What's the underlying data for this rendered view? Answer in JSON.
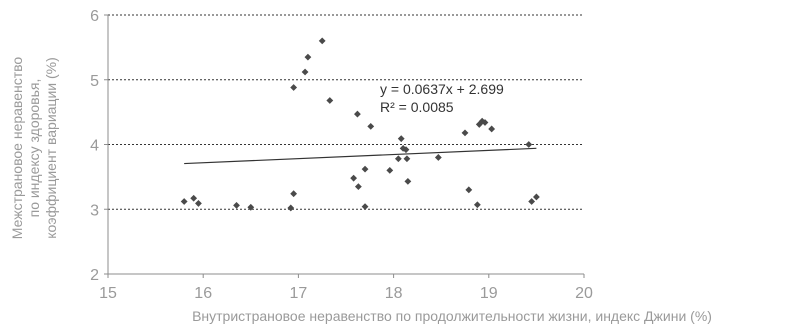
{
  "chart_data": {
    "type": "scatter",
    "title": "",
    "xlabel": "Внутристрановое неравенство по продолжительности жизни, индекс Джини (%)",
    "ylabel_lines": [
      "Межстрановое неравенство",
      "по индексу здоровья,",
      "коэффициент вариации (%)"
    ],
    "xlim": [
      15,
      20
    ],
    "ylim": [
      2,
      6
    ],
    "xticks": [
      15,
      16,
      17,
      18,
      19,
      20
    ],
    "yticks": [
      2,
      3,
      4,
      5,
      6
    ],
    "grid_y": true,
    "trendline": {
      "slope": 0.0637,
      "intercept": 2.699,
      "x_range": [
        15.8,
        19.5
      ],
      "equation": "y = 0.0637x + 2.699",
      "r2_label": "R² = 0.0085"
    },
    "points": [
      {
        "x": 15.8,
        "y": 3.12
      },
      {
        "x": 15.9,
        "y": 3.17
      },
      {
        "x": 15.95,
        "y": 3.09
      },
      {
        "x": 16.35,
        "y": 3.06
      },
      {
        "x": 16.5,
        "y": 3.03
      },
      {
        "x": 16.92,
        "y": 3.02
      },
      {
        "x": 16.95,
        "y": 3.24
      },
      {
        "x": 16.95,
        "y": 4.88
      },
      {
        "x": 17.07,
        "y": 5.12
      },
      {
        "x": 17.1,
        "y": 5.35
      },
      {
        "x": 17.25,
        "y": 5.6
      },
      {
        "x": 17.33,
        "y": 4.68
      },
      {
        "x": 17.58,
        "y": 3.48
      },
      {
        "x": 17.62,
        "y": 4.47
      },
      {
        "x": 17.63,
        "y": 3.35
      },
      {
        "x": 17.7,
        "y": 3.62
      },
      {
        "x": 17.7,
        "y": 3.04
      },
      {
        "x": 17.76,
        "y": 4.28
      },
      {
        "x": 17.96,
        "y": 3.6
      },
      {
        "x": 18.05,
        "y": 3.78
      },
      {
        "x": 18.08,
        "y": 4.09
      },
      {
        "x": 18.1,
        "y": 3.94
      },
      {
        "x": 18.13,
        "y": 3.92
      },
      {
        "x": 18.14,
        "y": 3.78
      },
      {
        "x": 18.15,
        "y": 3.43
      },
      {
        "x": 18.47,
        "y": 3.8
      },
      {
        "x": 18.75,
        "y": 4.18
      },
      {
        "x": 18.79,
        "y": 3.3
      },
      {
        "x": 18.88,
        "y": 3.07
      },
      {
        "x": 18.9,
        "y": 4.31
      },
      {
        "x": 18.93,
        "y": 4.36
      },
      {
        "x": 18.96,
        "y": 4.34
      },
      {
        "x": 19.03,
        "y": 4.24
      },
      {
        "x": 19.42,
        "y": 4.0
      },
      {
        "x": 19.45,
        "y": 3.12
      },
      {
        "x": 19.5,
        "y": 3.19
      }
    ]
  }
}
